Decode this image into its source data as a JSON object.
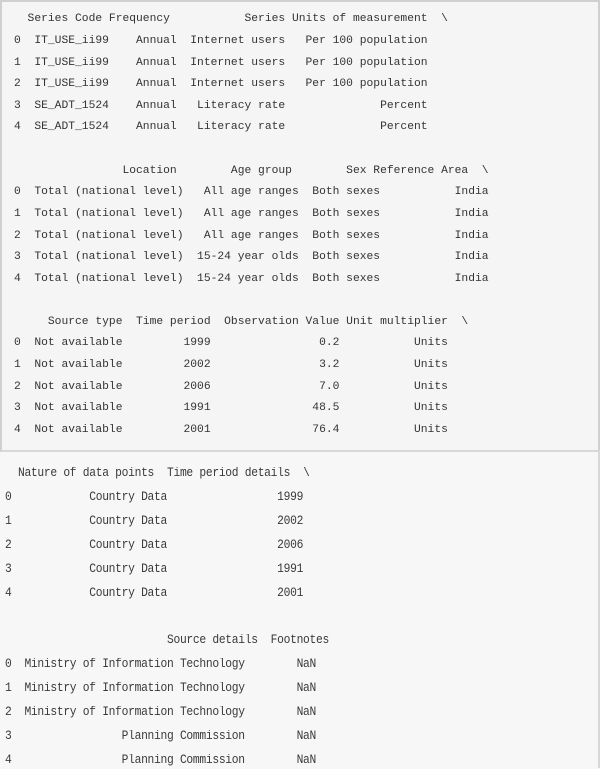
{
  "output_blocks": [
    {
      "header": "  Series Code Frequency           Series Units of measurement  \\",
      "rows": [
        "0  IT_USE_ii99    Annual  Internet users   Per 100 population",
        "1  IT_USE_ii99    Annual  Internet users   Per 100 population",
        "2  IT_USE_ii99    Annual  Internet users   Per 100 population",
        "3  SE_ADT_1524    Annual   Literacy rate              Percent",
        "4  SE_ADT_1524    Annual   Literacy rate              Percent"
      ]
    },
    {
      "header": "                Location        Age group        Sex Reference Area  \\",
      "rows": [
        "0  Total (national level)   All age ranges  Both sexes           India",
        "1  Total (national level)   All age ranges  Both sexes           India",
        "2  Total (national level)   All age ranges  Both sexes           India",
        "3  Total (national level)  15-24 year olds  Both sexes           India",
        "4  Total (national level)  15-24 year olds  Both sexes           India"
      ]
    },
    {
      "header": "     Source type  Time period  Observation Value Unit multiplier  \\",
      "rows": [
        "0  Not available         1999                0.2           Units",
        "1  Not available         2002                3.2           Units",
        "2  Not available         2006                7.0           Units",
        "3  Not available         1991               48.5           Units",
        "4  Not available         2001               76.4           Units"
      ]
    },
    {
      "header": "  Nature of data points  Time period details  \\",
      "rows": [
        "0            Country Data                 1999",
        "1            Country Data                 2002",
        "2            Country Data                 2006",
        "3            Country Data                 1991",
        "4            Country Data                 2001"
      ]
    },
    {
      "header": "                         Source details  Footnotes",
      "rows": [
        "0  Ministry of Information Technology        NaN",
        "1  Ministry of Information Technology        NaN",
        "2  Ministry of Information Technology        NaN",
        "3                 Planning Commission        NaN",
        "4                 Planning Commission        NaN"
      ]
    }
  ]
}
